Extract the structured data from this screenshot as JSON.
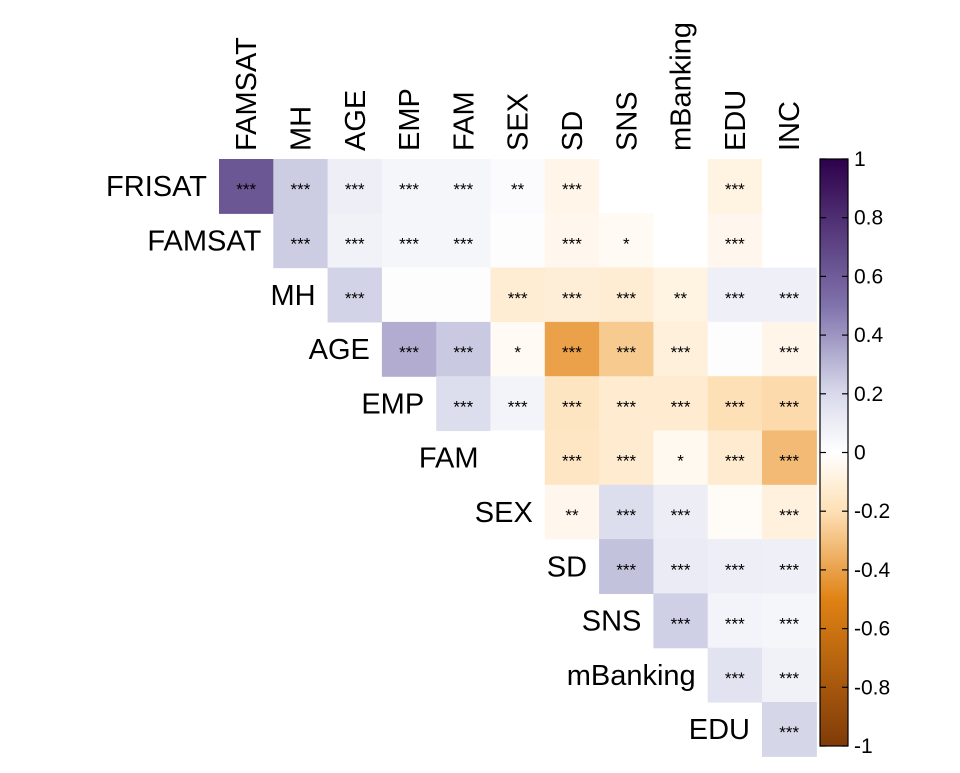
{
  "chart_data": {
    "type": "heatmap",
    "subtype": "upper-triangular correlation matrix",
    "columns": [
      "FAMSAT",
      "MH",
      "AGE",
      "EMP",
      "FAM",
      "SEX",
      "SD",
      "SNS",
      "mBanking",
      "EDU",
      "INC"
    ],
    "rows": [
      "FRISAT",
      "FAMSAT",
      "MH",
      "AGE",
      "EMP",
      "FAM",
      "SEX",
      "SD",
      "SNS",
      "mBanking",
      "EDU"
    ],
    "values": [
      [
        0.62,
        0.24,
        0.09,
        0.05,
        0.05,
        0.02,
        -0.06,
        0.0,
        0.0,
        -0.08,
        0.0
      ],
      [
        null,
        0.24,
        0.07,
        0.05,
        0.05,
        0.01,
        -0.05,
        -0.03,
        0.0,
        -0.05,
        0.0
      ],
      [
        null,
        null,
        0.22,
        0.01,
        0.01,
        -0.12,
        -0.11,
        -0.12,
        -0.08,
        0.08,
        0.08
      ],
      [
        null,
        null,
        null,
        0.33,
        0.25,
        -0.03,
        -0.4,
        -0.27,
        -0.1,
        0.01,
        -0.06
      ],
      [
        null,
        null,
        null,
        null,
        0.18,
        0.06,
        -0.17,
        -0.13,
        -0.13,
        -0.2,
        -0.22
      ],
      [
        null,
        null,
        null,
        null,
        null,
        0.0,
        -0.16,
        -0.13,
        -0.04,
        -0.13,
        -0.32
      ],
      [
        null,
        null,
        null,
        null,
        null,
        null,
        -0.05,
        0.18,
        0.1,
        -0.02,
        -0.09
      ],
      [
        null,
        null,
        null,
        null,
        null,
        null,
        null,
        0.27,
        0.11,
        0.09,
        0.08
      ],
      [
        null,
        null,
        null,
        null,
        null,
        null,
        null,
        null,
        0.23,
        0.06,
        0.05
      ],
      [
        null,
        null,
        null,
        null,
        null,
        null,
        null,
        null,
        null,
        0.15,
        0.07
      ],
      [
        null,
        null,
        null,
        null,
        null,
        null,
        null,
        null,
        null,
        null,
        0.21
      ]
    ],
    "significance": [
      [
        "***",
        "***",
        "***",
        "***",
        "***",
        "**",
        "***",
        "",
        "",
        "***",
        ""
      ],
      [
        null,
        "***",
        "***",
        "***",
        "***",
        "",
        "***",
        "*",
        "",
        "***",
        ""
      ],
      [
        null,
        null,
        "***",
        "",
        "",
        "***",
        "***",
        "***",
        "**",
        "***",
        "***"
      ],
      [
        null,
        null,
        null,
        "***",
        "***",
        "*",
        "***",
        "***",
        "***",
        "",
        "***"
      ],
      [
        null,
        null,
        null,
        null,
        "***",
        "***",
        "***",
        "***",
        "***",
        "***",
        "***"
      ],
      [
        null,
        null,
        null,
        null,
        null,
        "",
        "***",
        "***",
        "*",
        "***",
        "***"
      ],
      [
        null,
        null,
        null,
        null,
        null,
        null,
        "**",
        "***",
        "***",
        "",
        "***"
      ],
      [
        null,
        null,
        null,
        null,
        null,
        null,
        null,
        "***",
        "***",
        "***",
        "***"
      ],
      [
        null,
        null,
        null,
        null,
        null,
        null,
        null,
        null,
        "***",
        "***",
        "***"
      ],
      [
        null,
        null,
        null,
        null,
        null,
        null,
        null,
        null,
        null,
        "***",
        "***"
      ],
      [
        null,
        null,
        null,
        null,
        null,
        null,
        null,
        null,
        null,
        null,
        "***"
      ]
    ],
    "colorbar": {
      "range": [
        -1,
        1
      ],
      "ticks": [
        1,
        0.8,
        0.6,
        0.4,
        0.2,
        0,
        -0.2,
        -0.4,
        -0.6,
        -0.8,
        -1
      ],
      "tick_labels": [
        "1",
        "0.8",
        "0.6",
        "0.4",
        "0.2",
        "0",
        "-0.2",
        "-0.4",
        "-0.6",
        "-0.8",
        "-1"
      ]
    },
    "colors": {
      "positive_max": "#2d004b",
      "positive_mid": "#8073ac",
      "positive_low": "#d8daeb",
      "zero": "#ffffff",
      "negative_low": "#fee0b6",
      "negative_mid": "#e08214",
      "negative_max": "#7f3b08"
    },
    "grid": false,
    "legend_position": "right"
  }
}
